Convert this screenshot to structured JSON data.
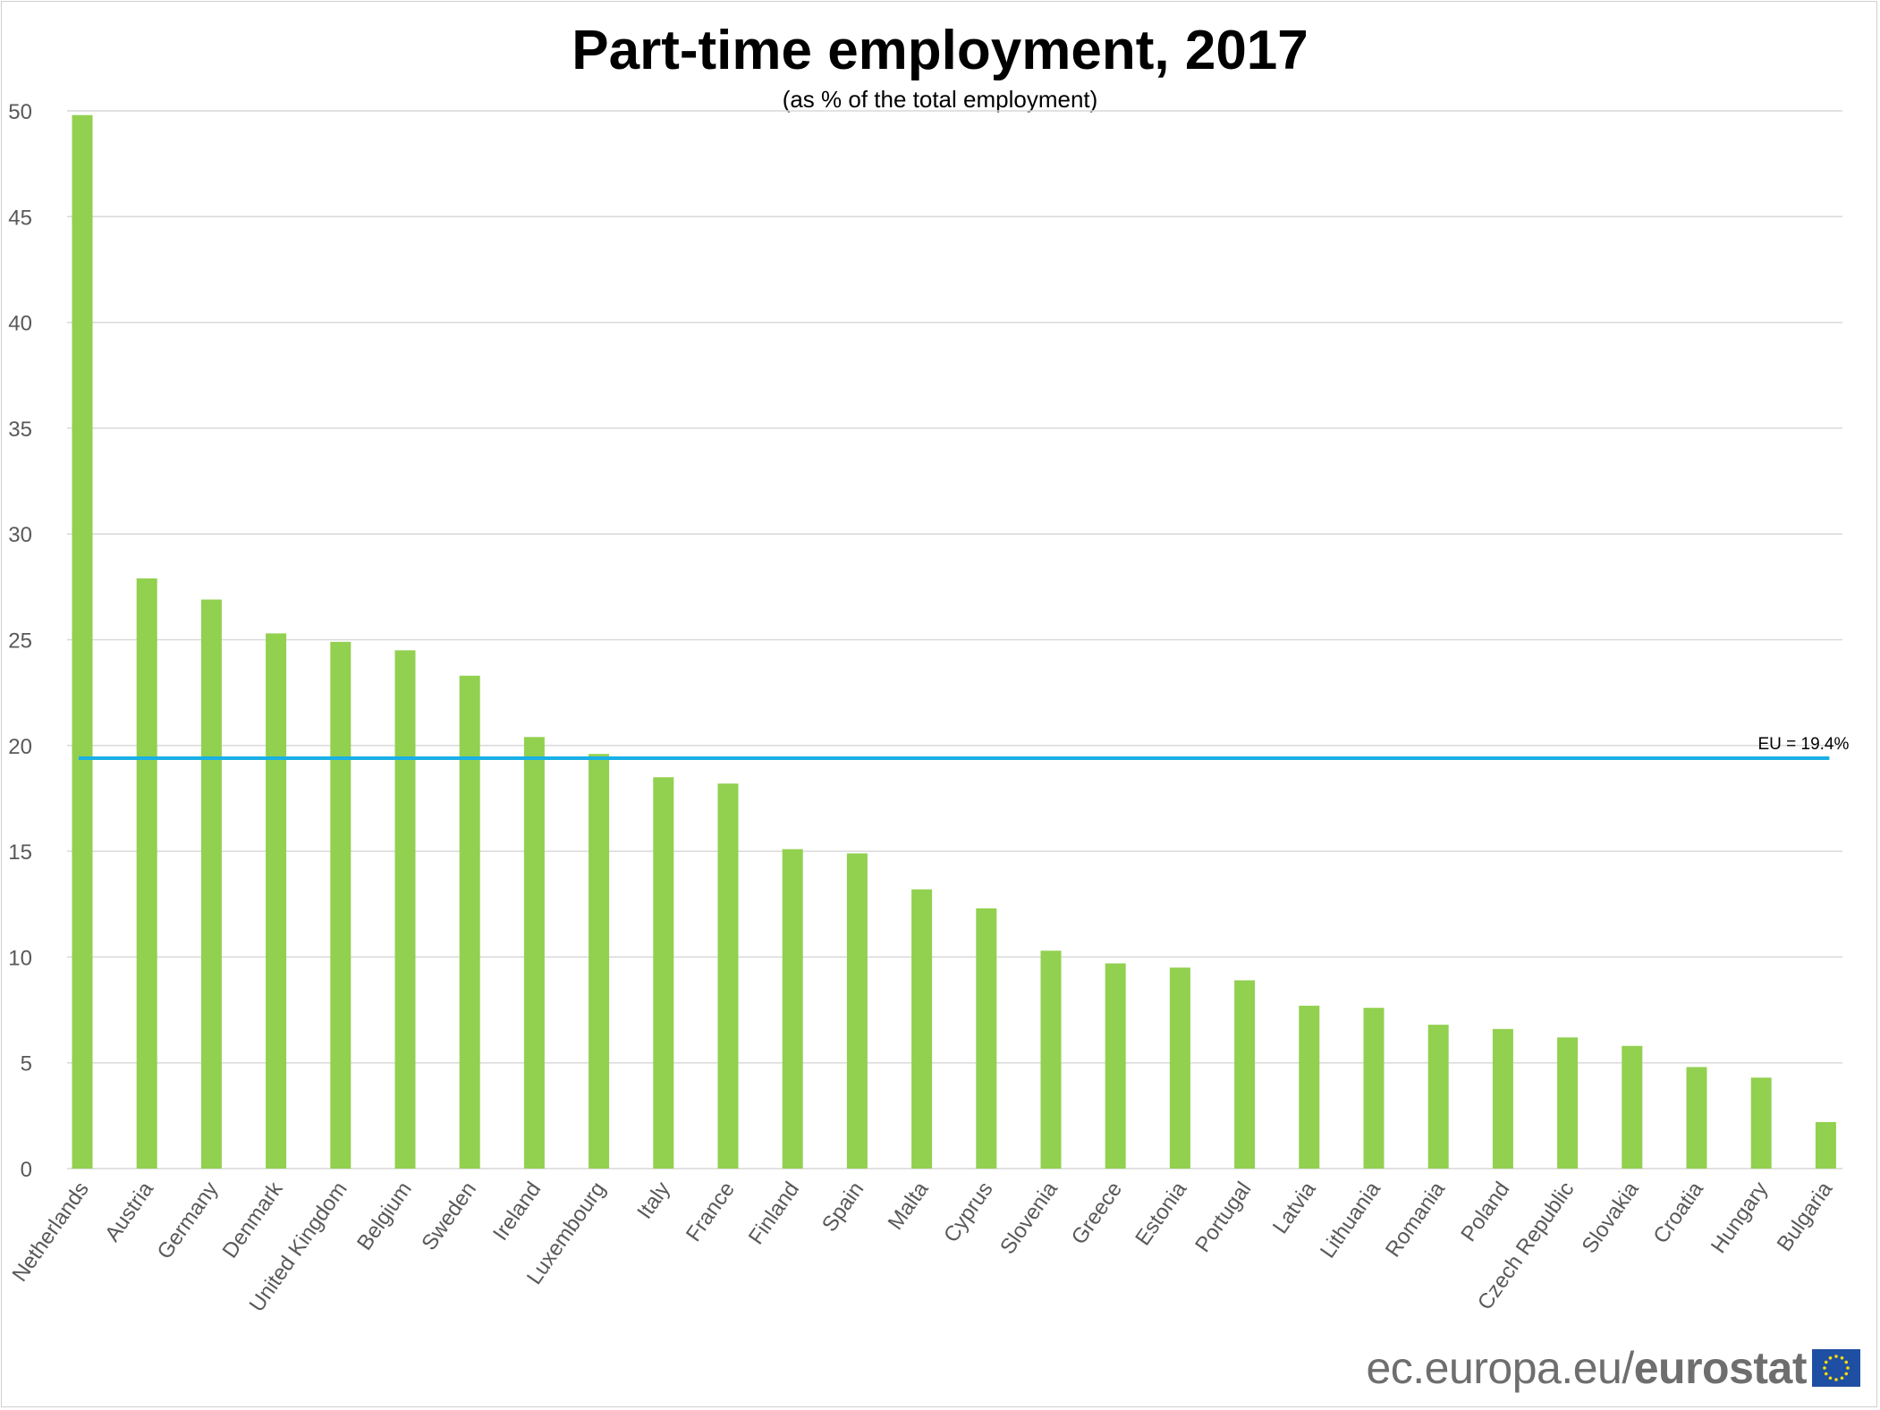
{
  "chart_data": {
    "type": "bar",
    "title": "Part-time employment, 2017",
    "subtitle": "(as % of the total employment)",
    "categories": [
      "Netherlands",
      "Austria",
      "Germany",
      "Denmark",
      "United Kingdom",
      "Belgium",
      "Sweden",
      "Ireland",
      "Luxembourg",
      "Italy",
      "France",
      "Finland",
      "Spain",
      "Malta",
      "Cyprus",
      "Slovenia",
      "Greece",
      "Estonia",
      "Portugal",
      "Latvia",
      "Lithuania",
      "Romania",
      "Poland",
      "Czech Republic",
      "Slovakia",
      "Croatia",
      "Hungary",
      "Bulgaria"
    ],
    "values": [
      49.8,
      27.9,
      26.9,
      25.3,
      24.9,
      24.5,
      23.3,
      20.4,
      19.6,
      18.5,
      18.2,
      15.1,
      14.9,
      13.2,
      12.3,
      10.3,
      9.7,
      9.5,
      8.9,
      7.7,
      7.6,
      6.8,
      6.6,
      6.2,
      5.8,
      4.8,
      4.3,
      2.2
    ],
    "ylim": [
      0,
      50
    ],
    "yticks": [
      0,
      5,
      10,
      15,
      20,
      25,
      30,
      35,
      40,
      45,
      50
    ],
    "grid": true,
    "bar_color": "#92d050",
    "reference_line": {
      "value": 19.4,
      "label": "EU = 19.4%",
      "color": "#1ab0e6"
    }
  },
  "footer": {
    "domain": "ec.europa.eu/",
    "brand": "eurostat",
    "flag_icon": "eu-flag-icon"
  }
}
